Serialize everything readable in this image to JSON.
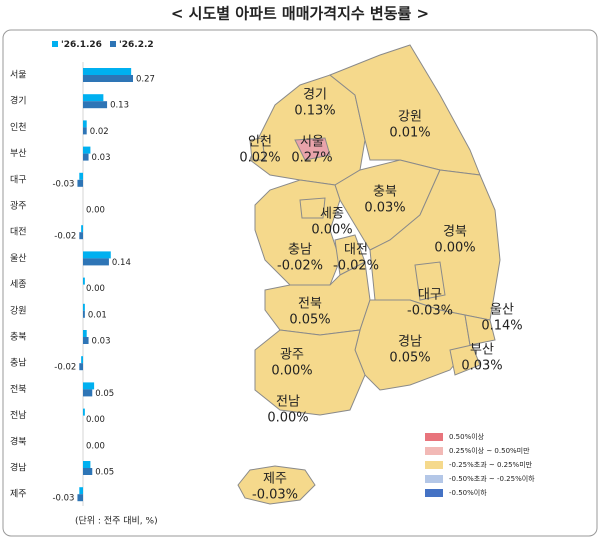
{
  "chart_data": [
    {
      "type": "hbar",
      "title": "< 시도별 아파트 매매가격지수 변동률 >",
      "note": "(단위 : 전주 대비, %)",
      "categories": [
        "서울",
        "경기",
        "인천",
        "부산",
        "대구",
        "광주",
        "대전",
        "울산",
        "세종",
        "강원",
        "충북",
        "충남",
        "전북",
        "전남",
        "경북",
        "경남",
        "제주"
      ],
      "series": [
        {
          "name": "'26.1.26",
          "color": "#00b0f0",
          "values": [
            0.26,
            0.11,
            0.02,
            0.04,
            -0.02,
            0.0,
            -0.01,
            0.15,
            0.01,
            0.01,
            0.02,
            -0.01,
            0.06,
            0.01,
            0.0,
            0.04,
            -0.02
          ]
        },
        {
          "name": "'26.2.2",
          "color": "#2e75b6",
          "values": [
            0.27,
            0.13,
            0.02,
            0.03,
            -0.03,
            0.0,
            -0.02,
            0.14,
            0.0,
            0.01,
            0.03,
            -0.02,
            0.05,
            0.0,
            0.0,
            0.05,
            -0.03
          ],
          "value_labels": [
            "0.27",
            "0.13",
            "0.02",
            "0.03",
            "-0.03",
            "0.00",
            "-0.02",
            "0.14",
            "0.00",
            "0.01",
            "0.03",
            "-0.02",
            "0.05",
            "0.00",
            "0.00",
            "0.05",
            "-0.03"
          ]
        }
      ]
    },
    {
      "type": "map",
      "categories": [
        "경기",
        "강원",
        "인천",
        "서울",
        "충북",
        "충남",
        "세종",
        "대전",
        "경북",
        "대구",
        "전북",
        "경남",
        "울산",
        "부산",
        "광주",
        "전남",
        "제주"
      ],
      "values": [
        0.13,
        0.01,
        0.02,
        0.27,
        0.03,
        -0.02,
        0.0,
        -0.02,
        0.0,
        -0.03,
        0.05,
        0.05,
        0.14,
        0.03,
        0.0,
        0.0,
        -0.03
      ],
      "value_labels": [
        "0.13%",
        "0.01%",
        "0.02%",
        "0.27%",
        "0.03%",
        "-0.02%",
        "0.00%",
        "-0.02%",
        "0.00%",
        "-0.03%",
        "0.05%",
        "0.05%",
        "0.14%",
        "0.03%",
        "0.00%",
        "0.00%",
        "-0.03%"
      ],
      "colors": [
        "#f5d98c",
        "#f5d98c",
        "#f5d98c",
        "#e9a3aa",
        "#f5d98c",
        "#f5d98c",
        "#f5d98c",
        "#f5d98c",
        "#f5d98c",
        "#f5d98c",
        "#f5d98c",
        "#f5d98c",
        "#f5d98c",
        "#f5d98c",
        "#f5d98c",
        "#f5d98c",
        "#f5d98c"
      ],
      "legend": [
        {
          "label": "0.50%이상",
          "color": "#e8747c"
        },
        {
          "label": "0.25%이상 ~ 0.50%미만",
          "color": "#f2b9b6"
        },
        {
          "label": "-0.25%초과 ~ 0.25%미만",
          "color": "#f5d98c"
        },
        {
          "label": "-0.50%초과 ~ -0.25%이하",
          "color": "#b4c7e7"
        },
        {
          "label": "-0.50%이하",
          "color": "#4472c4"
        }
      ]
    }
  ]
}
